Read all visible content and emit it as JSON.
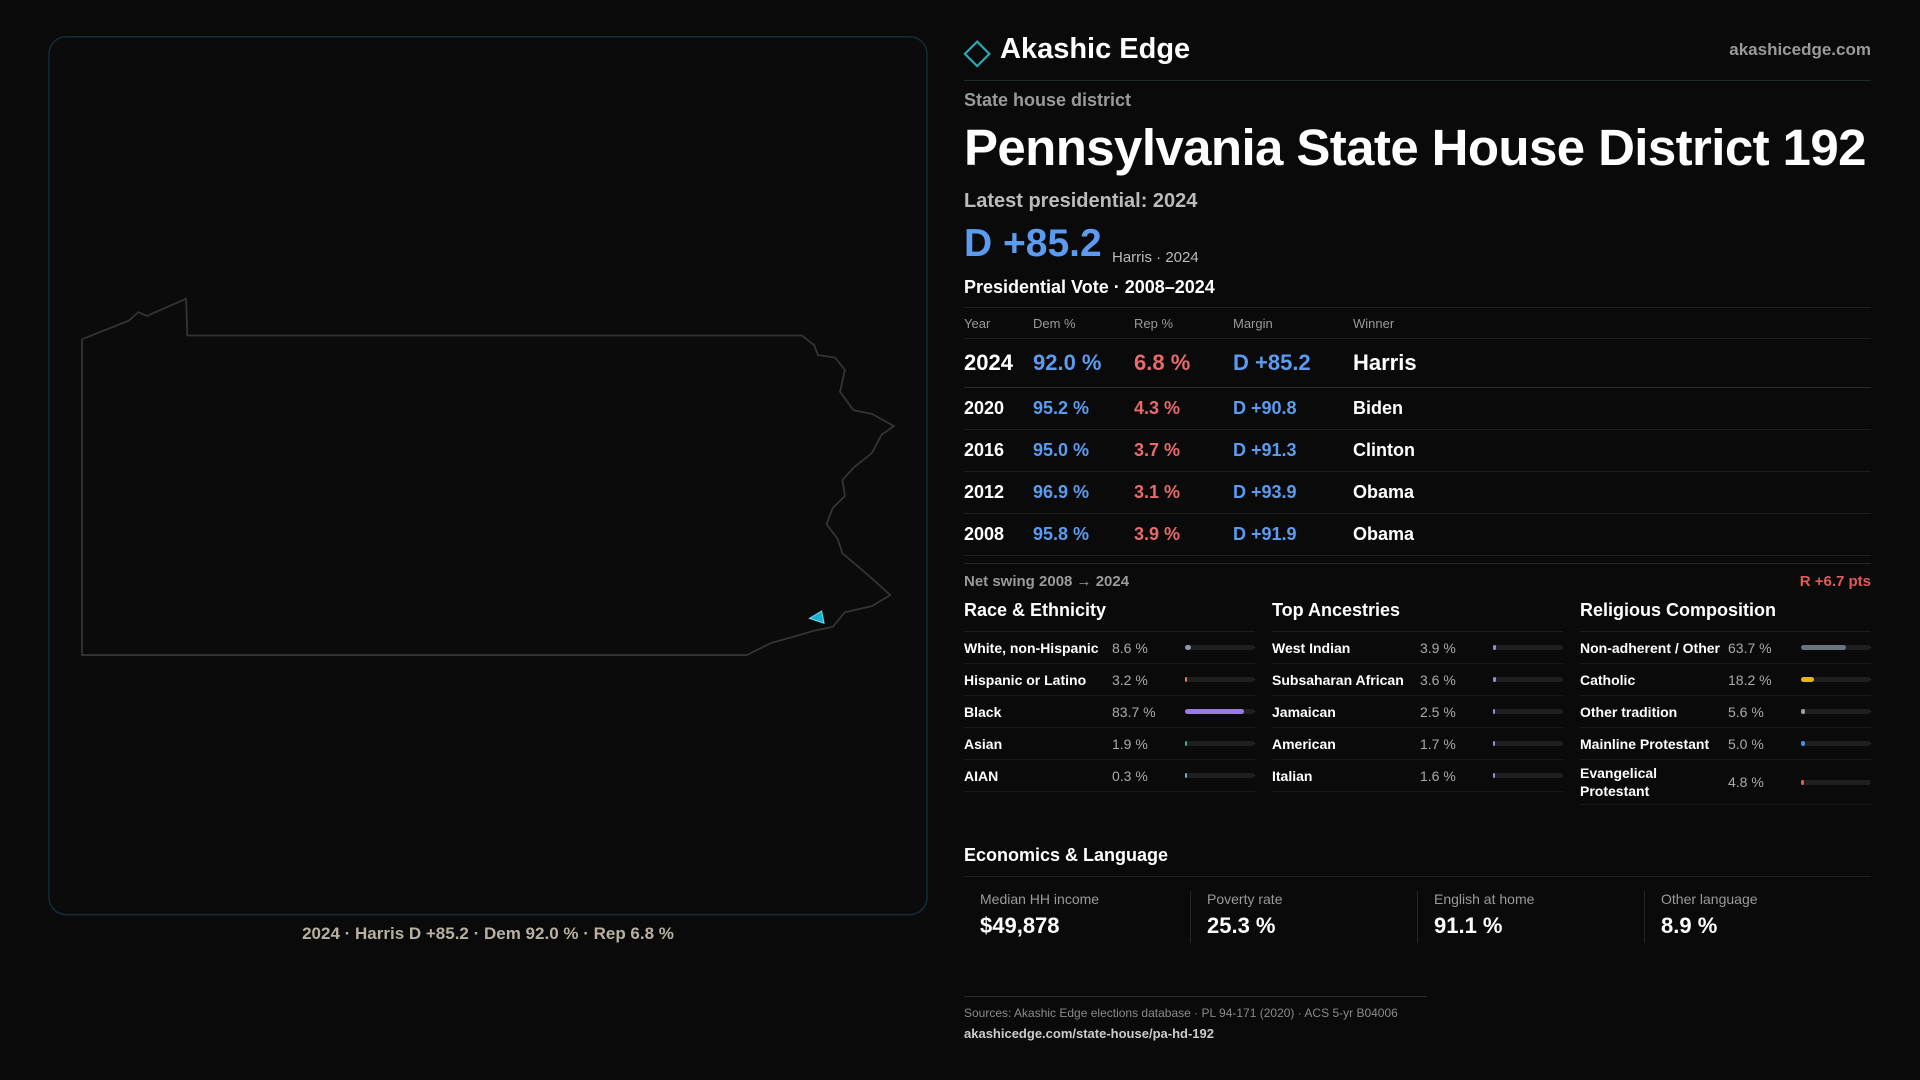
{
  "brand": {
    "name": "Akashic Edge",
    "site": "akashicedge.com"
  },
  "header": {
    "kicker": "State house district",
    "title": "Pennsylvania State House District 192",
    "latest": "Latest presidential: 2024",
    "margin": "D +85.2",
    "margin_note": "Harris · 2024"
  },
  "map": {
    "caption": "2024 · Harris D +85.2 · Dem 92.0 % · Rep 6.8 %"
  },
  "vote_table": {
    "title": "Presidential Vote · 2008–2024",
    "columns": [
      "Year",
      "Dem %",
      "Rep %",
      "Margin",
      "Winner"
    ],
    "rows": [
      [
        "2024",
        "92.0 %",
        "6.8 %",
        "D +85.2",
        "Harris"
      ],
      [
        "2020",
        "95.2 %",
        "4.3 %",
        "D +90.8",
        "Biden"
      ],
      [
        "2016",
        "95.0 %",
        "3.7 %",
        "D +91.3",
        "Clinton"
      ],
      [
        "2012",
        "96.9 %",
        "3.1 %",
        "D +93.9",
        "Obama"
      ],
      [
        "2008",
        "95.8 %",
        "3.9 %",
        "D +91.9",
        "Obama"
      ]
    ]
  },
  "swing": {
    "label": "Net swing 2008 → 2024",
    "value": "R +6.7 pts"
  },
  "race": {
    "title": "Race & Ethnicity",
    "items": [
      {
        "label": "White, non-Hispanic",
        "value": 8.6,
        "value_label": "8.6 %",
        "color": "#8e97b0"
      },
      {
        "label": "Hispanic or Latino",
        "value": 3.2,
        "value_label": "3.2 %",
        "color": "#e8823a"
      },
      {
        "label": "Black",
        "value": 83.7,
        "value_label": "83.7 %",
        "color": "#9b7be0"
      },
      {
        "label": "Asian",
        "value": 1.9,
        "value_label": "1.9 %",
        "color": "#3fae7a"
      },
      {
        "label": "AIAN",
        "value": 0.3,
        "value_label": "0.3 %",
        "color": "#5ab0c8"
      }
    ]
  },
  "ancestry": {
    "title": "Top Ancestries",
    "items": [
      {
        "label": "West Indian",
        "value": 3.9,
        "value_label": "3.9 %",
        "color": "#8c8ce0"
      },
      {
        "label": "Subsaharan African",
        "value": 3.6,
        "value_label": "3.6 %",
        "color": "#8c8ce0"
      },
      {
        "label": "Jamaican",
        "value": 2.5,
        "value_label": "2.5 %",
        "color": "#8c8ce0"
      },
      {
        "label": "American",
        "value": 1.7,
        "value_label": "1.7 %",
        "color": "#8c8ce0"
      },
      {
        "label": "Italian",
        "value": 1.6,
        "value_label": "1.6 %",
        "color": "#8c8ce0"
      }
    ]
  },
  "religion": {
    "title": "Religious Composition",
    "items": [
      {
        "label": "Non-adherent / Other",
        "value": 63.7,
        "value_label": "63.7 %",
        "color": "#6b7280"
      },
      {
        "label": "Catholic",
        "value": 18.2,
        "value_label": "18.2 %",
        "color": "#e6b422"
      },
      {
        "label": "Other tradition",
        "value": 5.6,
        "value_label": "5.6 %",
        "color": "#9aa0aa"
      },
      {
        "label": "Mainline Protestant",
        "value": 5.0,
        "value_label": "5.0 %",
        "color": "#4a8fe0"
      },
      {
        "label": "Evangelical Protestant",
        "value": 4.8,
        "value_label": "4.8 %",
        "color": "#e05a5a"
      }
    ]
  },
  "economics": {
    "title": "Economics & Language",
    "cards": [
      {
        "label": "Median HH income",
        "value": "$49,878"
      },
      {
        "label": "Poverty rate",
        "value": "25.3 %"
      },
      {
        "label": "English at home",
        "value": "91.1 %"
      },
      {
        "label": "Other language",
        "value": "8.9 %"
      }
    ]
  },
  "footer": {
    "sources": "Sources: Akashic Edge elections database · PL 94-171 (2020) · ACS 5-yr B04006",
    "url": "akashicedge.com/state-house/pa-hd-192"
  }
}
